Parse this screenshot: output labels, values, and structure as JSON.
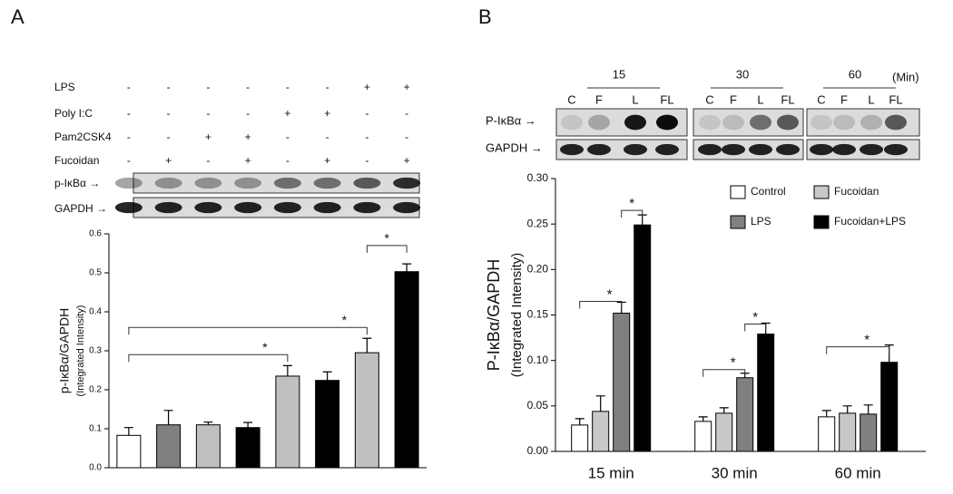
{
  "panels": [
    "A",
    "B"
  ],
  "treatments": {
    "rows": [
      {
        "label": "LPS",
        "signs": [
          "-",
          "-",
          "-",
          "-",
          "-",
          "-",
          "+",
          "+"
        ]
      },
      {
        "label": "Poly I:C",
        "signs": [
          "-",
          "-",
          "-",
          "-",
          "+",
          "+",
          "-",
          "-"
        ]
      },
      {
        "label": "Pam2CSK4",
        "signs": [
          "-",
          "-",
          "+",
          "+",
          "-",
          "-",
          "-",
          "-"
        ]
      },
      {
        "label": "Fucoidan",
        "signs": [
          "-",
          "+",
          "-",
          "+",
          "-",
          "+",
          "-",
          "+"
        ]
      }
    ]
  },
  "blot_a": {
    "labels": [
      "p-IκBα →",
      "GAPDH →"
    ]
  },
  "blot_b": {
    "times": [
      "15",
      "30",
      "60"
    ],
    "unit": "(Min)",
    "lanes": [
      "C",
      "F",
      "L",
      "FL"
    ],
    "labels": [
      "P-IκBα →",
      "GAPDH →"
    ]
  },
  "chart_data": [
    {
      "type": "bar",
      "categories": [
        null,
        null,
        null,
        null,
        null,
        null,
        null,
        null
      ],
      "values": [
        0.083,
        0.11,
        0.11,
        0.103,
        0.235,
        0.224,
        0.295,
        0.503
      ],
      "errors": [
        0.02,
        0.037,
        0.007,
        0.013,
        0.027,
        0.022,
        0.037,
        0.02
      ],
      "colors": [
        "#ffffff",
        "#808080",
        "#c0c0c0",
        "#000000",
        "#c0c0c0",
        "#000000",
        "#c0c0c0",
        "#000000"
      ],
      "ylim": [
        0,
        0.6
      ],
      "yticks": [
        {
          "value": 0,
          "label": "0.0"
        },
        0.1,
        0.2,
        0.3,
        0.4,
        0.5,
        0.6
      ],
      "ylabel": [
        "p-IκBα/GAPDH",
        "(Integrated Intensity)"
      ],
      "significance": [
        {
          "pair": [
            0,
            4
          ],
          "y": 0.29,
          "label": "*"
        },
        {
          "pair": [
            0,
            6
          ],
          "y": 0.36,
          "label": "*"
        },
        {
          "pair": [
            6,
            7
          ],
          "y": 0.57,
          "label": "*"
        }
      ]
    },
    {
      "type": "grouped_bar",
      "categories": [
        "15 min",
        "30 min",
        "60 min"
      ],
      "series": [
        {
          "name": "Control",
          "color": "#ffffff",
          "values": [
            0.029,
            0.033,
            0.038
          ],
          "errors": [
            0.007,
            0.005,
            0.007
          ]
        },
        {
          "name": "Fucoidan",
          "color": "#c8c8c8",
          "values": [
            0.044,
            0.042,
            0.042
          ],
          "errors": [
            0.017,
            0.006,
            0.008
          ]
        },
        {
          "name": "LPS",
          "color": "#808080",
          "values": [
            0.152,
            0.081,
            0.041
          ],
          "errors": [
            0.012,
            0.005,
            0.01
          ]
        },
        {
          "name": "Fucoidan+LPS",
          "color": "#000000",
          "values": [
            0.249,
            0.129,
            0.098
          ],
          "errors": [
            0.011,
            0.012,
            0.019
          ]
        }
      ],
      "ylim": [
        0,
        0.3
      ],
      "yticks": [
        {
          "value": 0,
          "label": "0.00"
        },
        0.05,
        {
          "value": 0.1,
          "label": "0.10"
        },
        0.15,
        {
          "value": 0.2,
          "label": "0.20"
        },
        0.25,
        {
          "value": 0.3,
          "label": "0.30"
        }
      ],
      "ylabel": [
        "P-IκBα/GAPDH",
        "(Integrated Intensity)"
      ],
      "significance": [
        {
          "group": 0,
          "pair": [
            0,
            2
          ],
          "y": 0.165,
          "label": "*"
        },
        {
          "group": 0,
          "pair": [
            2,
            3
          ],
          "y": 0.265,
          "label": "*"
        },
        {
          "group": 1,
          "pair": [
            0,
            2
          ],
          "y": 0.09,
          "label": "*"
        },
        {
          "group": 1,
          "pair": [
            2,
            3
          ],
          "y": 0.14,
          "label": "*"
        },
        {
          "group": 2,
          "pair": [
            0,
            3
          ],
          "y": 0.115,
          "label": "*"
        }
      ]
    }
  ]
}
